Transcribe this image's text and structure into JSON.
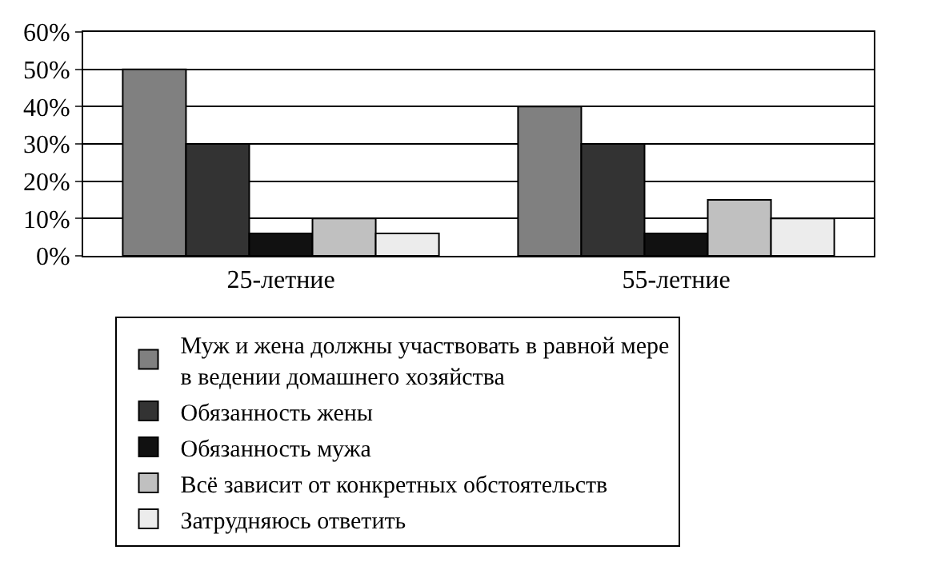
{
  "chart_data": {
    "type": "bar",
    "categories": [
      "25-летние",
      "55-летние"
    ],
    "series": [
      {
        "name": "Муж и жена должны участвовать в равной мере\nв ведении домашнего хозяйства",
        "color": "#808080",
        "values": [
          50,
          40
        ]
      },
      {
        "name": "Обязанность жены",
        "color": "#333333",
        "values": [
          30,
          30
        ]
      },
      {
        "name": "Обязанность мужа",
        "color": "#111111",
        "values": [
          6,
          6
        ]
      },
      {
        "name": "Всё зависит от конкретных обстоятельств",
        "color": "#c0c0c0",
        "values": [
          10,
          15
        ]
      },
      {
        "name": "Затрудняюсь ответить",
        "color": "#ececec",
        "values": [
          6,
          10
        ]
      }
    ],
    "ylim": [
      0,
      60
    ],
    "yticks": [
      {
        "value": 0,
        "label": "0%"
      },
      {
        "value": 10,
        "label": "10%"
      },
      {
        "value": 20,
        "label": "20%"
      },
      {
        "value": 30,
        "label": "30%"
      },
      {
        "value": 40,
        "label": "40%"
      },
      {
        "value": 50,
        "label": "50%"
      },
      {
        "value": 60,
        "label": "60%"
      }
    ],
    "grid": "y",
    "legend": "bottom"
  }
}
